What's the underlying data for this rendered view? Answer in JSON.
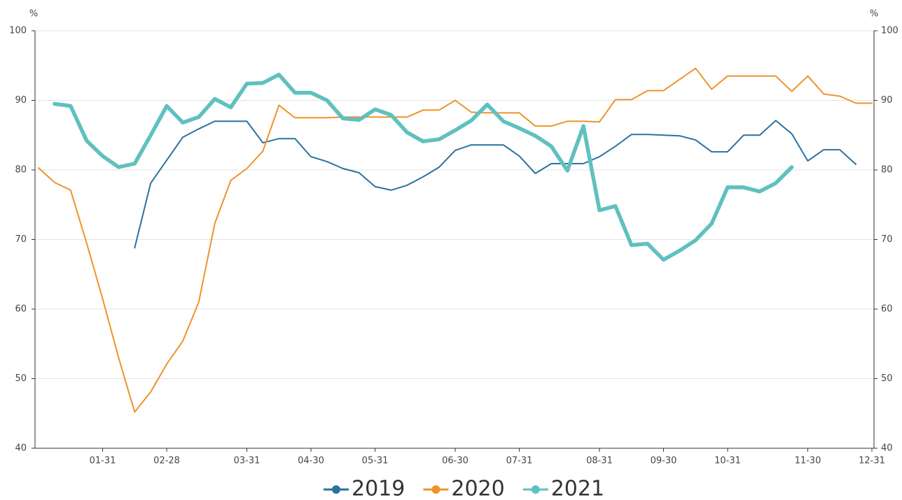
{
  "chart_data": {
    "type": "line",
    "ylabel": "%",
    "y2label": "%",
    "categories": [
      null,
      null,
      null,
      null,
      "01-31",
      null,
      null,
      null,
      "02-28",
      null,
      null,
      null,
      null,
      "03-31",
      null,
      null,
      null,
      "04-30",
      null,
      null,
      null,
      "05-31",
      null,
      null,
      null,
      null,
      "06-30",
      null,
      null,
      null,
      "07-31",
      null,
      null,
      null,
      null,
      "08-31",
      null,
      null,
      null,
      "09-30",
      null,
      null,
      null,
      "10-31",
      null,
      null,
      null,
      null,
      "11-30",
      null,
      null,
      null,
      "12-31"
    ],
    "ylim": [
      40,
      100
    ],
    "yticks": [
      40,
      50,
      60,
      70,
      80,
      90,
      100
    ],
    "y2lim": [
      40,
      100
    ],
    "y2ticks": [
      40,
      50,
      60,
      70,
      80,
      90,
      100
    ],
    "grid": true,
    "legend": "bottom",
    "series": [
      {
        "name": "2019",
        "color": "#2b72a0",
        "values": [
          null,
          null,
          null,
          null,
          null,
          null,
          68.8,
          78.1,
          81.4,
          84.7,
          85.9,
          87,
          87,
          87,
          83.9,
          84.5,
          84.5,
          81.9,
          81.2,
          80.2,
          79.6,
          77.6,
          77.1,
          77.8,
          79,
          80.4,
          82.8,
          83.6,
          83.6,
          83.6,
          82,
          79.5,
          80.9,
          80.9,
          80.9,
          81.9,
          83.4,
          85.1,
          85.1,
          85,
          84.9,
          84.3,
          82.6,
          82.6,
          85,
          85,
          87.1,
          85.2,
          81.3,
          82.9,
          82.9,
          80.8,
          null
        ]
      },
      {
        "name": "2020",
        "color": "#f0922a",
        "values": [
          80.3,
          78.2,
          77.1,
          69.5,
          61.5,
          53,
          45.2,
          48.1,
          52.1,
          55.4,
          61,
          72.3,
          78.5,
          80.2,
          82.7,
          89.3,
          87.5,
          87.5,
          87.5,
          87.6,
          87.6,
          87.6,
          87.6,
          87.6,
          88.6,
          88.6,
          90,
          88.3,
          88.2,
          88.2,
          88.2,
          86.3,
          86.3,
          87,
          87,
          86.9,
          90.1,
          90.1,
          91.4,
          91.4,
          93,
          94.6,
          91.6,
          93.5,
          93.5,
          93.5,
          93.5,
          91.3,
          93.5,
          90.9,
          90.6,
          89.6,
          89.6
        ]
      },
      {
        "name": "2021",
        "color": "#5fc1bf",
        "values": [
          null,
          89.5,
          89.2,
          84.2,
          82,
          80.4,
          80.9,
          85,
          89.2,
          86.8,
          87.6,
          90.2,
          89,
          92.4,
          92.5,
          93.7,
          91.1,
          91.1,
          90,
          87.4,
          87.2,
          88.7,
          87.9,
          85.4,
          84.1,
          84.4,
          85.7,
          87.1,
          89.4,
          87,
          86,
          84.9,
          83.4,
          79.9,
          86.3,
          74.2,
          74.8,
          69.2,
          69.4,
          67.1,
          68.4,
          69.9,
          72.3,
          77.5,
          77.5,
          76.9,
          78.1,
          80.4,
          null,
          null,
          null,
          null,
          null
        ]
      }
    ]
  }
}
